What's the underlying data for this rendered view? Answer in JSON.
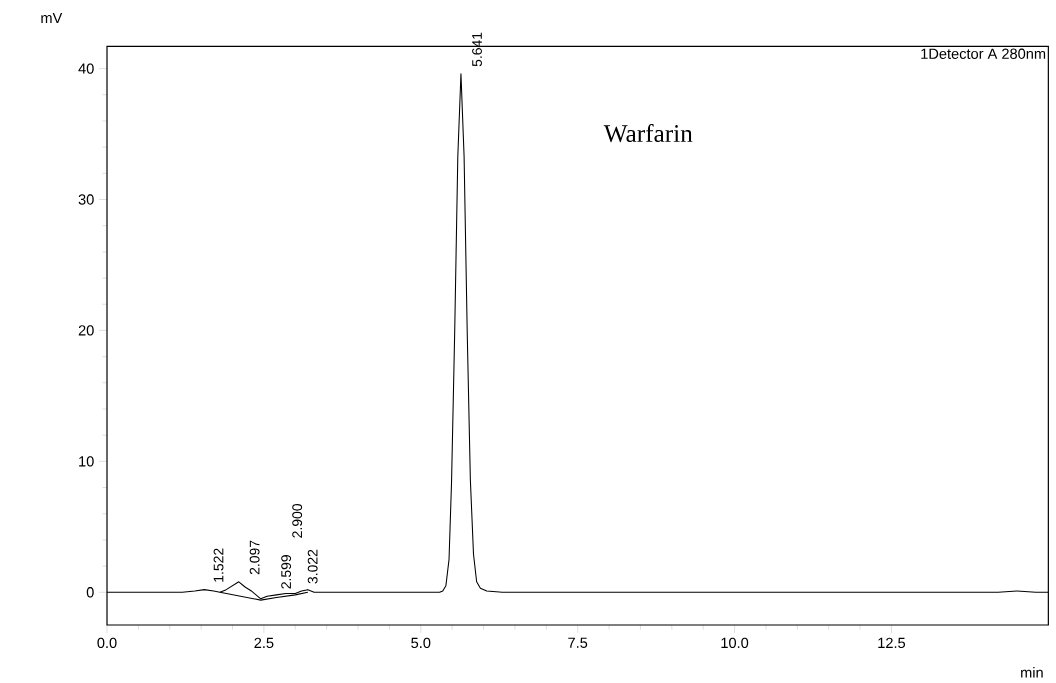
{
  "chart_data": {
    "type": "line",
    "xlabel": "min",
    "ylabel": "mV",
    "xlim": [
      0,
      15.0
    ],
    "ylim": [
      -2.5,
      41.7
    ],
    "xticks": [
      {
        "value": 0,
        "label": "0.0"
      },
      {
        "value": 2.5,
        "label": "2.5"
      },
      {
        "value": 5,
        "label": "5.0"
      },
      {
        "value": 7.5,
        "label": "7.5"
      },
      {
        "value": 10,
        "label": "10.0"
      },
      {
        "value": 12.5,
        "label": "12.5"
      }
    ],
    "yticks": [
      0,
      10,
      20,
      30,
      40
    ],
    "grid": false,
    "legend": false,
    "marker": "none",
    "line_style": "solid",
    "series": [
      {
        "color": "#000000",
        "x": [
          0,
          1.0,
          1.2,
          1.4,
          1.55,
          1.7,
          1.8,
          1.9,
          2.0,
          2.1,
          2.2,
          2.3,
          2.45,
          2.55,
          2.7,
          2.85,
          3.0,
          3.1,
          3.2,
          3.3,
          3.6,
          4.5,
          5.0,
          5.3,
          5.35,
          5.4,
          5.45,
          5.49,
          5.54,
          5.59,
          5.64,
          5.69,
          5.74,
          5.79,
          5.84,
          5.89,
          5.95,
          6.05,
          6.3,
          8.0,
          10.0,
          12.0,
          14.2,
          14.5,
          14.8,
          15.0
        ],
        "values": [
          0,
          0,
          0,
          0.1,
          0.2,
          0.1,
          0,
          0.2,
          0.5,
          0.8,
          0.4,
          0.1,
          -0.5,
          -0.3,
          -0.2,
          -0.1,
          -0.1,
          0.1,
          0.2,
          0,
          0,
          0,
          0,
          0,
          0.1,
          0.5,
          2.5,
          8.4,
          19.8,
          33.3,
          39.6,
          33.3,
          19.8,
          8.6,
          2.9,
          0.8,
          0.3,
          0.1,
          0,
          0,
          0,
          0,
          0,
          0.1,
          0,
          0
        ]
      },
      {
        "color": "#000000",
        "x": [
          1.8,
          2.45,
          2.7,
          3.0,
          3.2
        ],
        "values": [
          0,
          -0.6,
          -0.4,
          -0.2,
          0
        ]
      }
    ],
    "annotations": [
      {
        "text": "1.522",
        "x": 1.522,
        "y": 0.2
      },
      {
        "text": "2.097",
        "x": 2.097,
        "y": 0.8
      },
      {
        "text": "2.599",
        "x": 2.599,
        "y": -0.3
      },
      {
        "text": "3.022",
        "x": 3.022,
        "y": 0.1
      },
      {
        "text": "5.641",
        "x": 5.641,
        "y": 39.6
      },
      "Warfarin",
      "1Detector A 280nm",
      "2.900"
    ]
  }
}
